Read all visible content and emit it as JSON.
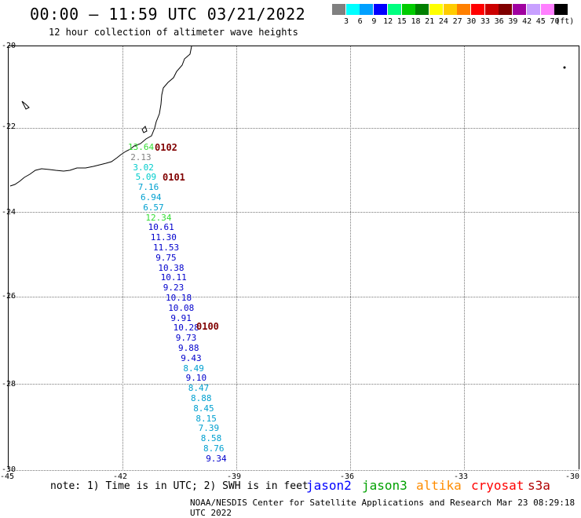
{
  "title": "00:00 – 11:59 UTC 03/21/2022",
  "subtitle": "12 hour collection of altimeter wave heights",
  "colorbar": {
    "unit": "(ft)",
    "bins": [
      {
        "label": "3",
        "color": "#808080"
      },
      {
        "label": "6",
        "color": "#00ffff"
      },
      {
        "label": "9",
        "color": "#00a0ff"
      },
      {
        "label": "12",
        "color": "#0000ff"
      },
      {
        "label": "15",
        "color": "#00ff7f"
      },
      {
        "label": "18",
        "color": "#00cc00"
      },
      {
        "label": "21",
        "color": "#008000"
      },
      {
        "label": "24",
        "color": "#ffff00"
      },
      {
        "label": "27",
        "color": "#ffcc00"
      },
      {
        "label": "30",
        "color": "#ff8000"
      },
      {
        "label": "33",
        "color": "#ff0000"
      },
      {
        "label": "36",
        "color": "#cc0000"
      },
      {
        "label": "39",
        "color": "#800000"
      },
      {
        "label": "42",
        "color": "#a000a0"
      },
      {
        "label": "45",
        "color": "#c8a0ff"
      },
      {
        "label": "70",
        "color": "#ff80ff"
      },
      {
        "label": "",
        "color": "#000000"
      }
    ]
  },
  "map": {
    "lat_labels": [
      "-20",
      "-22",
      "-24",
      "-26",
      "-28",
      "-30"
    ],
    "lon_labels": [
      "-45",
      "-42",
      "-39",
      "-36",
      "-33",
      "-30"
    ],
    "observations": [
      {
        "value": "13.64",
        "color": "#33dd33"
      },
      {
        "value": "2.13",
        "color": "#808080"
      },
      {
        "value": "3.02",
        "color": "#00cccc"
      },
      {
        "value": "5.09",
        "color": "#00cccc"
      },
      {
        "value": "7.16",
        "color": "#00a0d0"
      },
      {
        "value": "6.94",
        "color": "#00a0d0"
      },
      {
        "value": "6.57",
        "color": "#00a0d0"
      },
      {
        "value": "12.34",
        "color": "#33dd33"
      },
      {
        "value": "10.61",
        "color": "#0000cc"
      },
      {
        "value": "11.30",
        "color": "#0000cc"
      },
      {
        "value": "11.53",
        "color": "#0000cc"
      },
      {
        "value": "9.75",
        "color": "#0000cc"
      },
      {
        "value": "10.38",
        "color": "#0000cc"
      },
      {
        "value": "10.11",
        "color": "#0000cc"
      },
      {
        "value": "9.23",
        "color": "#0000cc"
      },
      {
        "value": "10.18",
        "color": "#0000cc"
      },
      {
        "value": "10.08",
        "color": "#0000cc"
      },
      {
        "value": "9.91",
        "color": "#0000cc"
      },
      {
        "value": "10.28",
        "color": "#0000cc"
      },
      {
        "value": "9.73",
        "color": "#0000cc"
      },
      {
        "value": "9.88",
        "color": "#0000cc"
      },
      {
        "value": "9.43",
        "color": "#0000cc"
      },
      {
        "value": "8.49",
        "color": "#00a0d0"
      },
      {
        "value": "9.10",
        "color": "#0000cc"
      },
      {
        "value": "8.47",
        "color": "#00a0d0"
      },
      {
        "value": "8.88",
        "color": "#00a0d0"
      },
      {
        "value": "8.45",
        "color": "#00a0d0"
      },
      {
        "value": "8.15",
        "color": "#00a0d0"
      },
      {
        "value": "7.39",
        "color": "#00a0d0"
      },
      {
        "value": "8.58",
        "color": "#00a0d0"
      },
      {
        "value": "8.76",
        "color": "#00a0d0"
      },
      {
        "value": "9.34",
        "color": "#0000cc"
      }
    ],
    "pass_labels": [
      "0102",
      "0101",
      "0100"
    ]
  },
  "note": "note: 1) Time is in UTC; 2) SWH is in feet",
  "legend": [
    {
      "name": "jason2",
      "color": "#0000ff"
    },
    {
      "name": "jason3",
      "color": "#00a000"
    },
    {
      "name": "altika",
      "color": "#ff8c00"
    },
    {
      "name": "cryosat",
      "color": "#ff0000"
    },
    {
      "name": "s3a",
      "color": "#b00000"
    }
  ],
  "footer": "NOAA/NESDIS Center for Satellite Applications and Research    Mar 23 08:29:18 UTC 2022"
}
